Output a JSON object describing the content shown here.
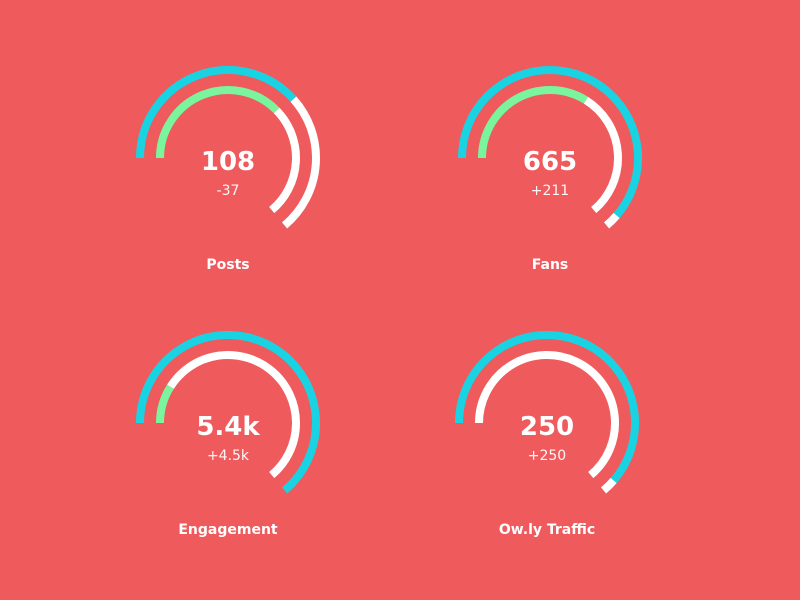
{
  "colors": {
    "background": "#ef5a5d",
    "outer_arc": "#19d3e3",
    "inner_arc": "#7af59e",
    "track": "#ffffff"
  },
  "gauges": [
    {
      "label": "Posts",
      "value": "108",
      "delta": "-37",
      "outer_progress": 0.6,
      "inner_progress": 0.59
    },
    {
      "label": "Fans",
      "value": "665",
      "delta": "+211",
      "outer_progress": 0.96,
      "inner_progress": 0.53
    },
    {
      "label": "Engagement",
      "value": "5.4k",
      "delta": "+4.5k",
      "outer_progress": 1.0,
      "inner_progress": 0.14
    },
    {
      "label": "Ow.ly Traffic",
      "value": "250",
      "delta": "+250",
      "outer_progress": 0.96,
      "inner_progress": 0.0
    }
  ]
}
